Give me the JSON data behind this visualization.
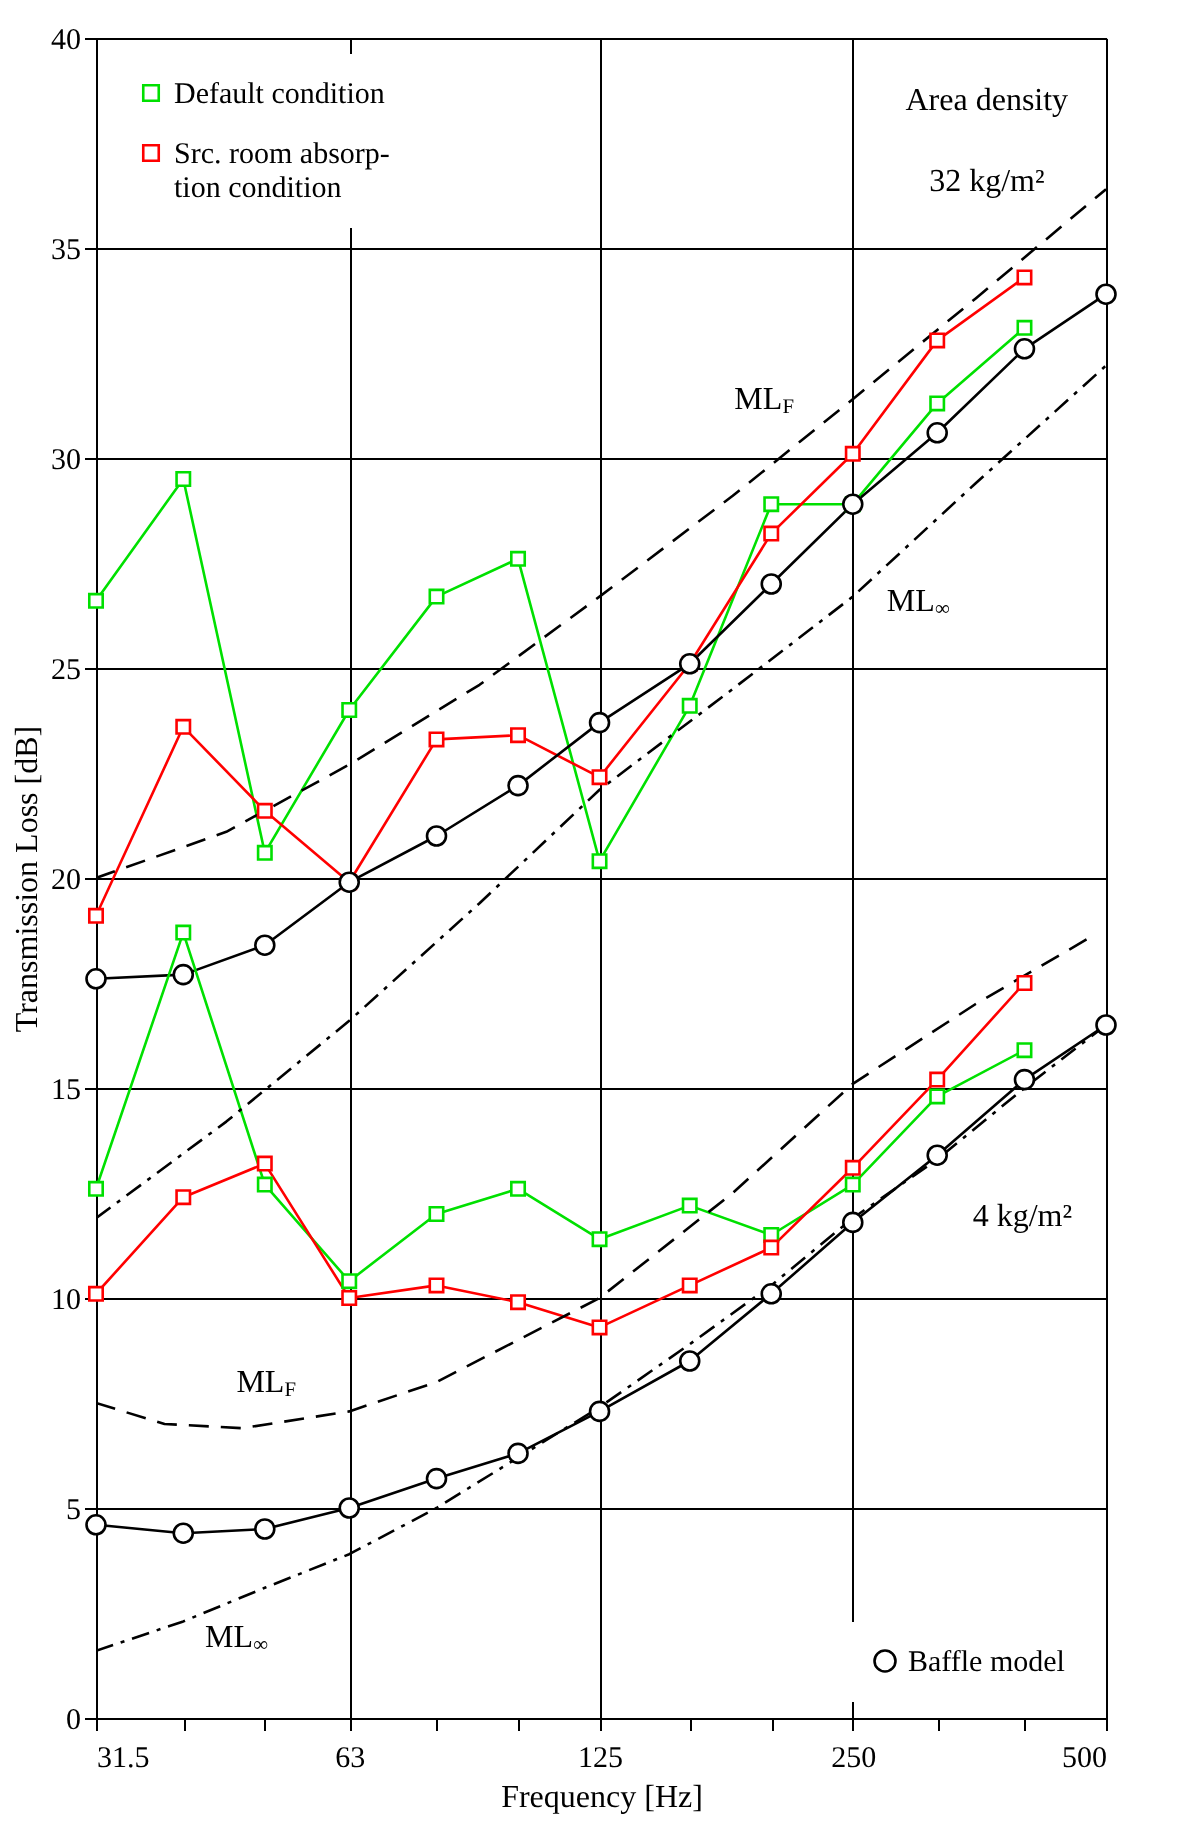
{
  "chart_data": {
    "type": "line",
    "xlabel": "Frequency [Hz]",
    "ylabel": "Transmission Loss [dB]",
    "log": "x",
    "xlim": [
      31.5,
      500
    ],
    "ylim": [
      0,
      40
    ],
    "xticks": [
      31.5,
      {
        "value": 40,
        "label": null
      },
      {
        "value": 50,
        "label": null
      },
      63,
      {
        "value": 80,
        "label": null
      },
      {
        "value": 100,
        "label": null
      },
      125,
      {
        "value": 160,
        "label": null
      },
      {
        "value": 200,
        "label": null
      },
      250,
      {
        "value": 315,
        "label": null
      },
      {
        "value": 400,
        "label": null
      },
      500
    ],
    "yticks": [
      0,
      5,
      10,
      15,
      20,
      25,
      30,
      35,
      40
    ],
    "grid": true,
    "legend": [
      "top left",
      "bottom right"
    ],
    "series": [
      {
        "name": "Default condition",
        "color": "#00e000",
        "marker": "square",
        "line_style": "solid",
        "x": [
          31.5,
          40,
          50,
          63,
          80,
          100,
          125,
          160,
          200,
          250,
          315,
          400
        ],
        "values": [
          26.6,
          29.5,
          20.6,
          24.0,
          26.7,
          27.6,
          20.4,
          24.1,
          28.9,
          28.9,
          31.3,
          33.1
        ]
      },
      {
        "name": "Src. room absorp-\ntion condition",
        "color": "#ff0000",
        "marker": "square",
        "line_style": "solid",
        "x": [
          31.5,
          40,
          50,
          63,
          80,
          100,
          125,
          160,
          200,
          250,
          315,
          400
        ],
        "values": [
          19.1,
          23.6,
          21.6,
          19.9,
          23.3,
          23.4,
          22.4,
          25.1,
          28.2,
          30.1,
          32.8,
          34.3
        ]
      },
      {
        "name": "Baffle model",
        "color": "#000000",
        "marker": "circle",
        "line_style": "solid",
        "x": [
          31.5,
          40,
          50,
          63,
          80,
          100,
          125,
          160,
          200,
          250,
          315,
          400,
          500
        ],
        "values": [
          17.6,
          17.7,
          18.4,
          19.9,
          21.0,
          22.2,
          23.7,
          25.1,
          27.0,
          28.9,
          30.6,
          32.6,
          33.9
        ]
      },
      {
        "color": "#00e000",
        "marker": "square",
        "line_style": "solid",
        "x": [
          31.5,
          40,
          50,
          63,
          80,
          100,
          125,
          160,
          200,
          250,
          315,
          400
        ],
        "values": [
          12.6,
          18.7,
          12.7,
          10.4,
          12.0,
          12.6,
          11.4,
          12.2,
          11.5,
          12.7,
          14.8,
          15.9
        ]
      },
      {
        "color": "#ff0000",
        "marker": "square",
        "line_style": "solid",
        "x": [
          31.5,
          40,
          50,
          63,
          80,
          100,
          125,
          160,
          200,
          250,
          315,
          400
        ],
        "values": [
          10.1,
          12.4,
          13.2,
          10.0,
          10.3,
          9.9,
          9.3,
          10.3,
          11.2,
          13.1,
          15.2,
          17.5
        ]
      },
      {
        "color": "#000000",
        "marker": "circle",
        "line_style": "solid",
        "x": [
          31.5,
          40,
          50,
          63,
          80,
          100,
          125,
          160,
          200,
          250,
          315,
          400,
          500
        ],
        "values": [
          4.6,
          4.4,
          4.5,
          5.0,
          5.7,
          6.3,
          7.3,
          8.5,
          10.1,
          11.8,
          13.4,
          15.2,
          16.5
        ]
      },
      {
        "color": "#000000",
        "marker": "none",
        "line_style": "dashed",
        "x": [
          31.5,
          45,
          63,
          90,
          125,
          180,
          250,
          350,
          500
        ],
        "values": [
          20.0,
          21.1,
          22.7,
          24.6,
          26.7,
          29.1,
          31.4,
          33.8,
          36.4
        ]
      },
      {
        "color": "#000000",
        "marker": "none",
        "line_style": "dashdot",
        "x": [
          31.5,
          45,
          63,
          90,
          125,
          180,
          250,
          350,
          500
        ],
        "values": [
          11.9,
          14.2,
          16.6,
          19.4,
          22.1,
          24.5,
          26.7,
          29.4,
          32.2
        ]
      },
      {
        "color": "#000000",
        "marker": "none",
        "line_style": "dashed",
        "x": [
          31.5,
          38,
          47,
          63,
          80,
          100,
          125,
          180,
          250,
          350,
          480
        ],
        "values": [
          7.5,
          7.0,
          6.9,
          7.3,
          8.0,
          9.0,
          10.0,
          12.5,
          15.1,
          17.0,
          18.6
        ]
      },
      {
        "color": "#000000",
        "marker": "none",
        "line_style": "dashdot",
        "x": [
          31.5,
          40,
          50,
          63,
          80,
          100,
          125,
          160,
          200,
          250,
          315,
          400,
          500
        ],
        "values": [
          1.6,
          2.3,
          3.1,
          3.9,
          5.0,
          6.2,
          7.4,
          8.9,
          10.3,
          11.9,
          13.3,
          15.0,
          16.5
        ]
      }
    ],
    "annotations": [
      "Area density",
      "32 kg/m²",
      "ML$_{F}$",
      "ML$_{∞}$",
      "ML$_{F}$",
      "ML$_{∞}$",
      "4 kg/m²"
    ]
  }
}
